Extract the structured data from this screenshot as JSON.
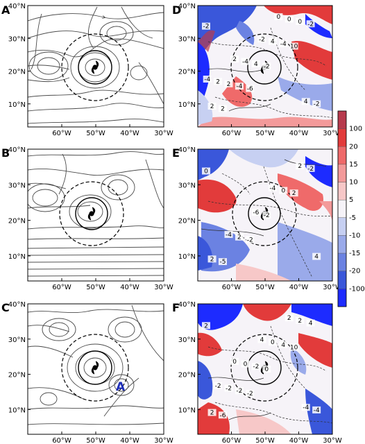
{
  "figure": {
    "panels": [
      {
        "id": "A",
        "label": "A",
        "kind": "streamline"
      },
      {
        "id": "B",
        "label": "B",
        "kind": "streamline"
      },
      {
        "id": "C",
        "label": "C",
        "kind": "streamline",
        "annotation": "A"
      },
      {
        "id": "D",
        "label": "D",
        "kind": "shaded"
      },
      {
        "id": "E",
        "label": "E",
        "kind": "shaded"
      },
      {
        "id": "F",
        "label": "F",
        "kind": "shaded"
      }
    ],
    "x_ticks": [
      "60°W",
      "50°W",
      "40°W",
      "30°W"
    ],
    "y_ticks": [
      "40°N",
      "30°N",
      "20°N",
      "10°N"
    ],
    "colorbar": {
      "labels": [
        "100",
        "20",
        "15",
        "10",
        "5",
        "-5",
        "-10",
        "-15",
        "-20",
        "-100"
      ],
      "colors": [
        "#b73a4d",
        "#e23b3b",
        "#ef6a6a",
        "#f39a9a",
        "#f7c8c8",
        "#f6f3f8",
        "#c7d0f2",
        "#9aaaea",
        "#6b82e2",
        "#3a57da",
        "#1d2bff"
      ]
    },
    "contour_labels": {
      "D": [
        "-2",
        "-6",
        "10",
        "2",
        "-2",
        "-2",
        "-4",
        "-4",
        "2",
        "4",
        "0",
        "2",
        "4",
        "-2",
        "-4",
        "0",
        "2",
        "-2",
        "4",
        "2",
        "0",
        "-4"
      ],
      "E": [
        "0",
        "-2",
        "2",
        "-5",
        "-2",
        "-2",
        "2",
        "0",
        "2",
        "-6",
        "2",
        "-4",
        "-4",
        "4"
      ],
      "F": [
        "2",
        "-2",
        "10",
        "-6",
        "0",
        "4",
        "-2",
        "4",
        "2",
        "-2",
        "2",
        "-2",
        "0",
        "-4",
        "0",
        "2",
        "-2",
        "4",
        "-4",
        "0"
      ]
    }
  }
}
